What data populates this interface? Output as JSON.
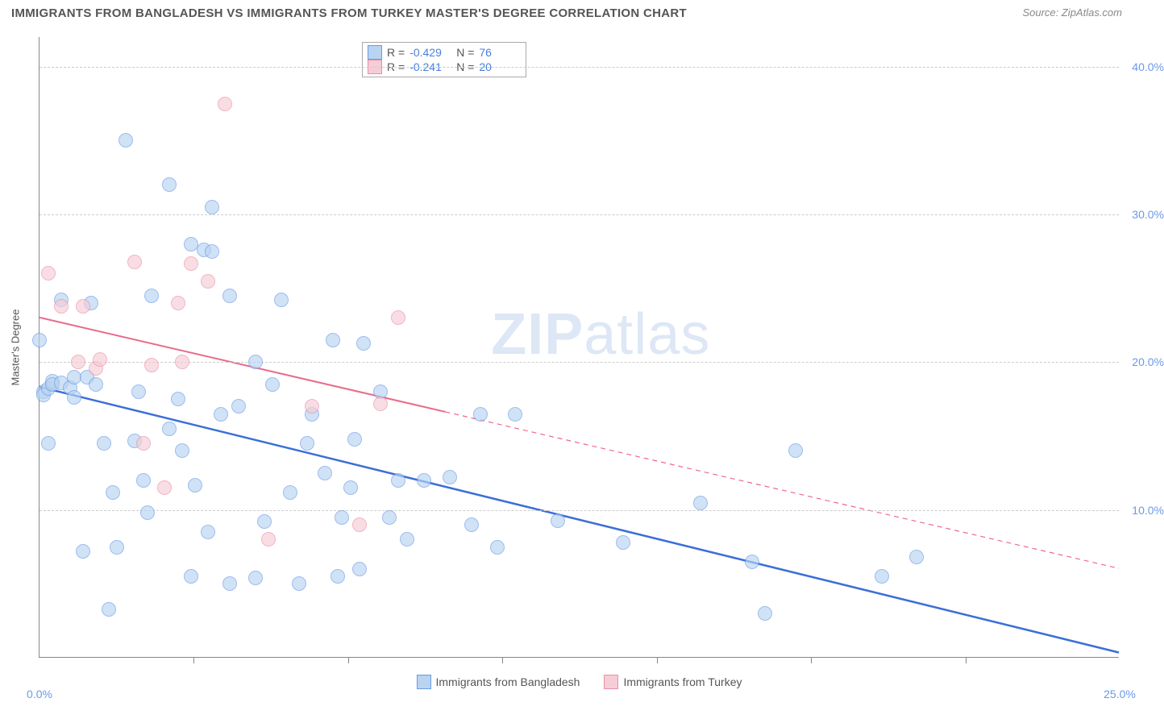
{
  "header": {
    "title": "IMMIGRANTS FROM BANGLADESH VS IMMIGRANTS FROM TURKEY MASTER'S DEGREE CORRELATION CHART",
    "source_prefix": "Source: ",
    "source_name": "ZipAtlas.com"
  },
  "chart": {
    "type": "scatter",
    "background_color": "#ffffff",
    "grid_color": "#cccccc",
    "axis_color": "#888888",
    "tick_label_color": "#6a99e8",
    "tick_fontsize": 14,
    "y_axis_label": "Master's Degree",
    "xlim": [
      0,
      25
    ],
    "ylim": [
      0,
      42
    ],
    "x_ticks": [
      0,
      25
    ],
    "x_tick_labels": [
      "0.0%",
      "25.0%"
    ],
    "x_minor_ticks": [
      3.57,
      7.14,
      10.71,
      14.29,
      17.86,
      21.43
    ],
    "y_gridlines": [
      10,
      20,
      30,
      40
    ],
    "y_tick_labels": [
      "10.0%",
      "20.0%",
      "30.0%",
      "40.0%"
    ],
    "watermark": {
      "zip": "ZIP",
      "atlas": "atlas",
      "color": "#dde7f5",
      "fontsize": 72
    },
    "stats_legend": {
      "rows": [
        {
          "swatch_fill": "#b8d4f0",
          "swatch_border": "#6a99e8",
          "r_label": "R =",
          "r_val": "-0.429",
          "n_label": "N =",
          "n_val": "76"
        },
        {
          "swatch_fill": "#f5cdd7",
          "swatch_border": "#e98fa5",
          "r_label": "R =",
          "r_val": "-0.241",
          "n_label": "N =",
          "n_val": "20"
        }
      ]
    },
    "bottom_legend": {
      "items": [
        {
          "swatch_fill": "#b8d4f0",
          "swatch_border": "#6a99e8",
          "label": "Immigrants from Bangladesh"
        },
        {
          "swatch_fill": "#f5cdd7",
          "swatch_border": "#e98fa5",
          "label": "Immigrants from Turkey"
        }
      ]
    },
    "series": [
      {
        "name": "bangladesh",
        "fill": "#b8d4f0",
        "border": "#6a99e8",
        "trend": {
          "color": "#3a6fd8",
          "width": 2.5,
          "x1": 0,
          "y1": 18.3,
          "x2": 25,
          "y2": 0.3,
          "dash_after_x": null
        },
        "points": [
          [
            0.0,
            21.5
          ],
          [
            0.1,
            18.0
          ],
          [
            0.1,
            17.8
          ],
          [
            0.2,
            18.2
          ],
          [
            0.2,
            14.5
          ],
          [
            0.3,
            18.7
          ],
          [
            0.3,
            18.5
          ],
          [
            0.5,
            18.6
          ],
          [
            0.5,
            24.2
          ],
          [
            0.7,
            18.3
          ],
          [
            0.8,
            17.6
          ],
          [
            0.8,
            19.0
          ],
          [
            1.0,
            7.2
          ],
          [
            1.1,
            19.0
          ],
          [
            1.2,
            24.0
          ],
          [
            1.3,
            18.5
          ],
          [
            1.5,
            14.5
          ],
          [
            1.6,
            3.3
          ],
          [
            1.7,
            11.2
          ],
          [
            1.8,
            7.5
          ],
          [
            2.0,
            35.0
          ],
          [
            2.2,
            14.7
          ],
          [
            2.3,
            18.0
          ],
          [
            2.4,
            12.0
          ],
          [
            2.5,
            9.8
          ],
          [
            2.6,
            24.5
          ],
          [
            3.0,
            32.0
          ],
          [
            3.0,
            15.5
          ],
          [
            3.2,
            17.5
          ],
          [
            3.3,
            14.0
          ],
          [
            3.5,
            5.5
          ],
          [
            3.5,
            28.0
          ],
          [
            3.6,
            11.7
          ],
          [
            3.8,
            27.6
          ],
          [
            3.9,
            8.5
          ],
          [
            4.0,
            30.5
          ],
          [
            4.0,
            27.5
          ],
          [
            4.2,
            16.5
          ],
          [
            4.4,
            5.0
          ],
          [
            4.4,
            24.5
          ],
          [
            4.6,
            17.0
          ],
          [
            5.0,
            20.0
          ],
          [
            5.0,
            5.4
          ],
          [
            5.2,
            9.2
          ],
          [
            5.4,
            18.5
          ],
          [
            5.6,
            24.2
          ],
          [
            5.8,
            11.2
          ],
          [
            6.0,
            5.0
          ],
          [
            6.2,
            14.5
          ],
          [
            6.3,
            16.5
          ],
          [
            6.6,
            12.5
          ],
          [
            6.8,
            21.5
          ],
          [
            6.9,
            5.5
          ],
          [
            7.0,
            9.5
          ],
          [
            7.2,
            11.5
          ],
          [
            7.3,
            14.8
          ],
          [
            7.4,
            6.0
          ],
          [
            7.5,
            21.3
          ],
          [
            7.9,
            18.0
          ],
          [
            8.1,
            9.5
          ],
          [
            8.3,
            12.0
          ],
          [
            8.5,
            8.0
          ],
          [
            8.9,
            12.0
          ],
          [
            9.5,
            12.2
          ],
          [
            10.0,
            9.0
          ],
          [
            10.2,
            16.5
          ],
          [
            10.6,
            7.5
          ],
          [
            11.0,
            16.5
          ],
          [
            13.5,
            7.8
          ],
          [
            15.3,
            10.5
          ],
          [
            16.5,
            6.5
          ],
          [
            16.8,
            3.0
          ],
          [
            17.5,
            14.0
          ],
          [
            19.5,
            5.5
          ],
          [
            20.3,
            6.8
          ],
          [
            12.0,
            9.3
          ]
        ]
      },
      {
        "name": "turkey",
        "fill": "#f5cdd7",
        "border": "#e98fa5",
        "trend": {
          "color": "#e86b8a",
          "width": 2,
          "x1": 0,
          "y1": 23.0,
          "x2": 25,
          "y2": 6.0,
          "dash_after_x": 9.4
        },
        "points": [
          [
            0.2,
            26.0
          ],
          [
            0.5,
            23.8
          ],
          [
            0.9,
            20.0
          ],
          [
            1.0,
            23.8
          ],
          [
            1.3,
            19.6
          ],
          [
            1.4,
            20.2
          ],
          [
            2.2,
            26.8
          ],
          [
            2.4,
            14.5
          ],
          [
            2.6,
            19.8
          ],
          [
            2.9,
            11.5
          ],
          [
            3.2,
            24.0
          ],
          [
            3.3,
            20.0
          ],
          [
            3.5,
            26.7
          ],
          [
            3.9,
            25.5
          ],
          [
            4.3,
            37.5
          ],
          [
            5.3,
            8.0
          ],
          [
            6.3,
            17.0
          ],
          [
            7.4,
            9.0
          ],
          [
            7.9,
            17.2
          ],
          [
            8.3,
            23.0
          ]
        ]
      }
    ]
  }
}
